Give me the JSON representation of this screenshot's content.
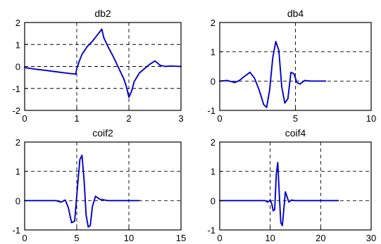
{
  "chart_data": [
    {
      "type": "line",
      "title": "db2",
      "xlim": [
        0,
        3
      ],
      "ylim": [
        -2,
        2
      ],
      "xticks": [
        0,
        1,
        2,
        3
      ],
      "yticks": [
        -2,
        -1,
        0,
        1,
        2
      ],
      "grid": true,
      "color": "#0000cc",
      "series": [
        {
          "x": [
            0,
            0.2,
            0.4,
            0.6,
            0.8,
            0.98,
            1.0,
            1.05,
            1.1,
            1.2,
            1.3,
            1.4,
            1.45,
            1.48,
            1.52,
            1.6,
            1.7,
            1.8,
            1.9,
            1.95,
            2.0,
            2.05,
            2.1,
            2.2,
            2.3,
            2.4,
            2.5,
            2.6,
            2.7,
            2.8,
            3.0
          ],
          "y": [
            -0.05,
            -0.12,
            -0.18,
            -0.24,
            -0.3,
            -0.35,
            -0.1,
            0.25,
            0.55,
            0.9,
            1.15,
            1.45,
            1.6,
            1.7,
            1.3,
            0.9,
            0.45,
            -0.05,
            -0.55,
            -0.9,
            -1.4,
            -1.15,
            -0.7,
            -0.3,
            -0.1,
            0.1,
            0.25,
            0.05,
            0.0,
            0.02,
            0.0
          ]
        }
      ]
    },
    {
      "type": "line",
      "title": "db4",
      "xlim": [
        0,
        10
      ],
      "ylim": [
        -1,
        2
      ],
      "xticks": [
        0,
        5,
        10
      ],
      "yticks": [
        -1,
        0,
        1,
        2
      ],
      "grid": true,
      "color": "#0000cc",
      "series": [
        {
          "x": [
            0,
            0.5,
            1.0,
            1.3,
            1.6,
            2.0,
            2.3,
            2.6,
            2.9,
            3.1,
            3.3,
            3.5,
            3.7,
            3.9,
            4.1,
            4.3,
            4.5,
            4.7,
            4.9,
            5.1,
            5.3,
            5.6,
            6.0,
            7.0
          ],
          "y": [
            0,
            0.02,
            -0.05,
            0.02,
            0.15,
            0.3,
            0.1,
            -0.3,
            -0.8,
            -0.9,
            -0.3,
            0.8,
            1.35,
            1.05,
            -0.2,
            -0.75,
            -0.6,
            0.3,
            0.25,
            -0.05,
            -0.1,
            0.02,
            0,
            0
          ]
        }
      ]
    },
    {
      "type": "line",
      "title": "coif2",
      "xlim": [
        0,
        15
      ],
      "ylim": [
        -1,
        2
      ],
      "xticks": [
        0,
        5,
        10,
        15
      ],
      "yticks": [
        -1,
        0,
        1,
        2
      ],
      "grid": true,
      "color": "#0000cc",
      "series": [
        {
          "x": [
            0,
            3.0,
            3.5,
            3.9,
            4.2,
            4.5,
            4.8,
            5.1,
            5.3,
            5.5,
            5.7,
            5.9,
            6.1,
            6.3,
            6.5,
            6.8,
            7.2,
            8.0,
            11.0
          ],
          "y": [
            0,
            0,
            -0.05,
            0.02,
            -0.25,
            -0.75,
            -0.7,
            0.6,
            1.4,
            1.55,
            0.7,
            -0.5,
            -0.9,
            -0.85,
            -0.2,
            0.15,
            0.05,
            0,
            0
          ]
        }
      ]
    },
    {
      "type": "line",
      "title": "coif4",
      "xlim": [
        0,
        30
      ],
      "ylim": [
        -1,
        2
      ],
      "xticks": [
        0,
        10,
        20,
        30
      ],
      "yticks": [
        -1,
        0,
        1,
        2
      ],
      "grid": true,
      "color": "#0000cc",
      "series": [
        {
          "x": [
            0,
            9.0,
            9.5,
            10.0,
            10.3,
            10.6,
            10.9,
            11.2,
            11.5,
            11.8,
            12.1,
            12.4,
            12.7,
            13.0,
            13.3,
            13.7,
            14.2,
            15.0,
            23.5
          ],
          "y": [
            0,
            0,
            -0.05,
            0.02,
            -0.1,
            -0.35,
            -0.3,
            0.9,
            1.3,
            0.2,
            -0.75,
            -0.85,
            -0.3,
            0.3,
            0.15,
            -0.05,
            0.02,
            0,
            0
          ]
        }
      ]
    }
  ]
}
